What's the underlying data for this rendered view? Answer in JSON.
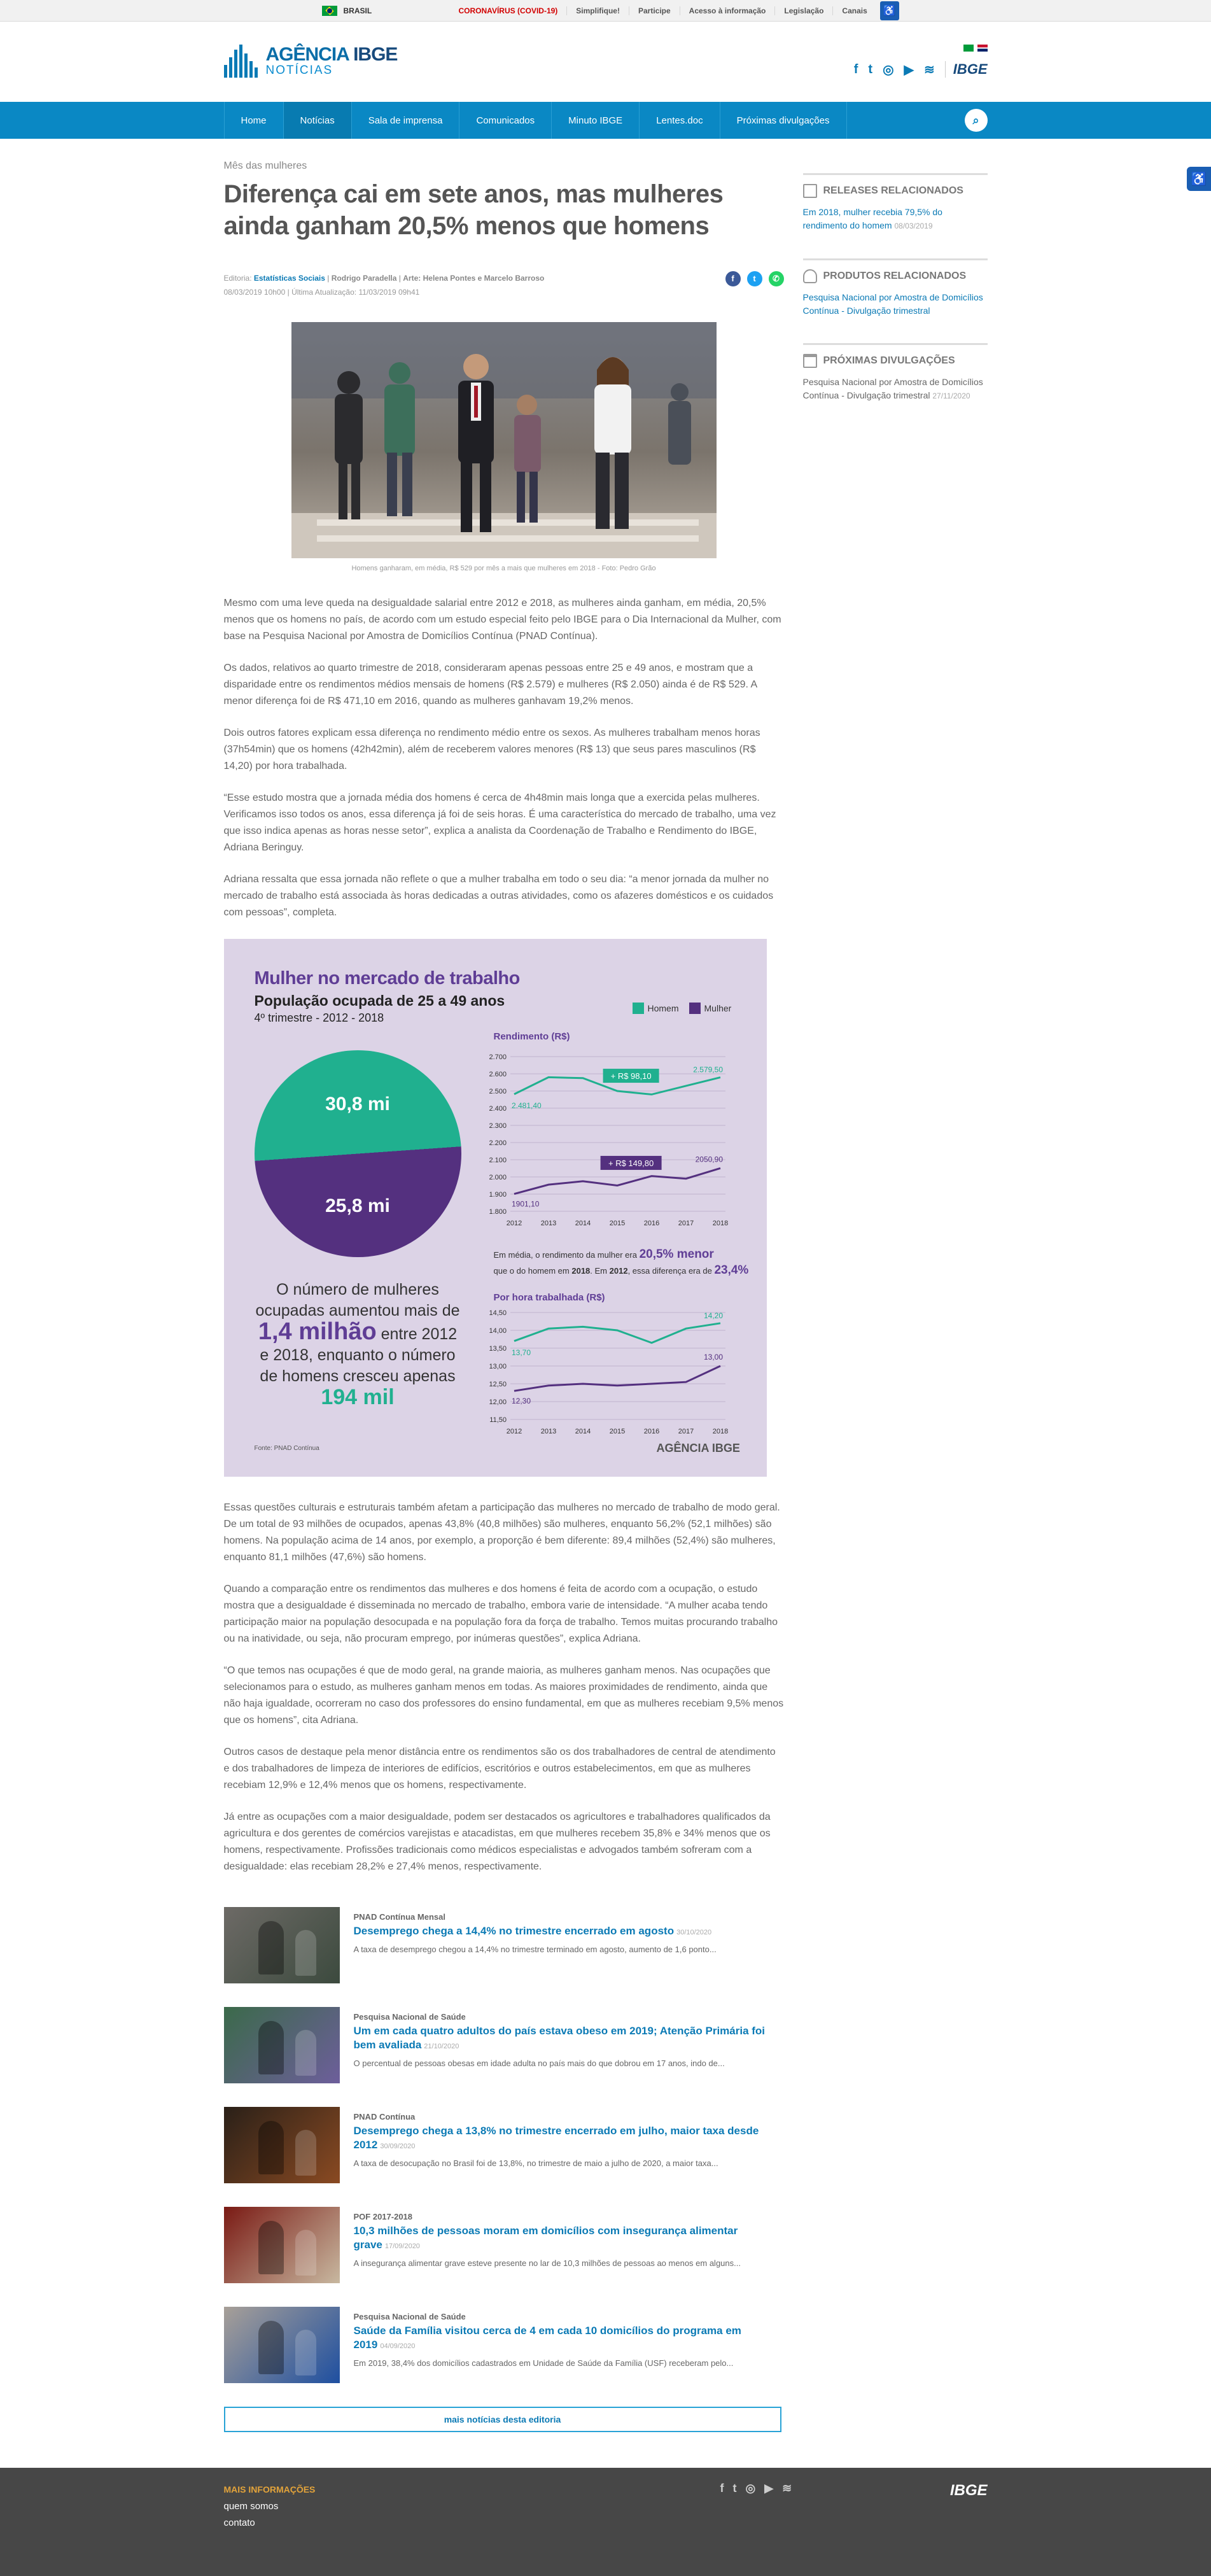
{
  "govbar": {
    "brasil": "BRASIL",
    "links": [
      "CORONAVÍRUS (COVID-19)",
      "Simplifique!",
      "Participe",
      "Acesso à informação",
      "Legislação",
      "Canais"
    ]
  },
  "header": {
    "logo_line1": "AGÊNCIA",
    "logo_line1b": "IBGE",
    "logo_line2": "NOTÍCIAS",
    "ibge": "IBGE"
  },
  "nav": {
    "items": [
      "Home",
      "Notícias",
      "Sala de imprensa",
      "Comunicados",
      "Minuto IBGE",
      "Lentes.doc",
      "Próximas divulgações"
    ],
    "active": "Notícias"
  },
  "article": {
    "kicker": "Mês das mulheres",
    "title": "Diferença cai em sete anos, mas mulheres ainda ganham 20,5% menos que homens",
    "editoria_label": "Editoria:",
    "editoria": "Estatísticas Sociais",
    "author": "Rodrigo Paradella",
    "art": "Arte: Helena Pontes e Marcelo Barroso",
    "date": "08/03/2019 10h00",
    "updated": "Última Atualização: 11/03/2019 09h41",
    "caption": "Homens ganharam, em média, R$ 529 por mês a mais que mulheres em 2018 - Foto: Pedro Grão",
    "paragraphs_a": [
      "Mesmo com uma leve queda na desigualdade salarial entre 2012 e 2018, as mulheres ainda ganham, em média, 20,5% menos que os homens no país, de acordo com um estudo especial feito pelo IBGE para o Dia Internacional da Mulher, com base na Pesquisa Nacional por Amostra de Domicílios Contínua (PNAD Contínua).",
      "Os dados, relativos ao quarto trimestre de 2018, consideraram apenas pessoas entre 25 e 49 anos, e mostram que a disparidade entre os rendimentos médios mensais de homens (R$ 2.579) e mulheres (R$ 2.050) ainda é de R$ 529. A menor diferença foi de R$ 471,10 em 2016, quando as mulheres ganhavam 19,2% menos.",
      "Dois outros fatores explicam essa diferença no rendimento médio entre os sexos. As mulheres trabalham menos horas (37h54min) que os homens (42h42min), além de receberem valores menores (R$ 13) que seus pares masculinos (R$ 14,20) por hora trabalhada.",
      "“Esse estudo mostra que a jornada média dos homens é cerca de 4h48min mais longa que a exercida pelas mulheres. Verificamos isso todos os anos, essa diferença já foi de seis horas. É uma característica do mercado de trabalho, uma vez que isso indica apenas as horas nesse setor”, explica a analista da Coordenação de Trabalho e Rendimento do IBGE, Adriana Beringuy.",
      "Adriana ressalta que essa jornada não reflete o que a mulher trabalha em todo o seu dia: “a menor jornada da mulher no mercado de trabalho está associada às horas dedicadas a outras atividades, como os afazeres domésticos e os cuidados com pessoas”, completa."
    ],
    "paragraphs_b": [
      "Essas questões culturais e estruturais também afetam a participação das mulheres no mercado de trabalho de modo geral. De um total de 93 milhões de ocupados, apenas 43,8% (40,8 milhões) são mulheres, enquanto 56,2% (52,1 milhões) são homens. Na população acima de 14 anos, por exemplo, a proporção é bem diferente: 89,4 milhões (52,4%) são mulheres, enquanto 81,1 milhões (47,6%) são homens.",
      "Quando a comparação entre os rendimentos das mulheres e dos homens é feita de acordo com a ocupação, o estudo mostra que a desigualdade é disseminada no mercado de trabalho, embora varie de intensidade. “A mulher acaba tendo participação maior na população desocupada e na população fora da força de trabalho. Temos muitas procurando trabalho ou na inatividade, ou seja, não procuram emprego, por inúmeras questões”, explica Adriana.",
      "“O que temos nas ocupações é que de modo geral, na grande maioria, as mulheres ganham menos. Nas ocupações que selecionamos para o estudo, as mulheres ganham menos em todas. As maiores proximidades de rendimento, ainda que não haja igualdade, ocorreram no caso dos professores do ensino fundamental, em que as mulheres recebiam 9,5% menos que os homens”, cita Adriana.",
      "Outros casos de destaque pela menor distância entre os rendimentos são os dos trabalhadores de central de atendimento e dos trabalhadores de limpeza de interiores de edifícios, escritórios e outros estabelecimentos, em que as mulheres recebiam 12,9% e 12,4% menos que os homens, respectivamente.",
      "Já entre as ocupações com a maior desigualdade, podem ser destacados os agricultores e trabalhadores qualificados da agricultura e dos gerentes de comércios varejistas e atacadistas, em que mulheres recebem 35,8% e 34% menos que os homens, respectivamente. Profissões tradicionais como médicos especialistas e advogados também sofreram com a desigualdade: elas recebiam 28,2% e 27,4% menos, respectivamente."
    ]
  },
  "infographic": {
    "title": "Mulher no mercado de trabalho",
    "subtitle": "População ocupada de 25 a 49 anos",
    "period": "4º trimestre - 2012 - 2018",
    "legend_men": "Homem",
    "legend_women": "Mulher",
    "pie_men": "30,8 mi",
    "pie_women": "25,8 mi",
    "text_1": "O número de mulheres ocupadas aumentou mais de",
    "text_big1": "1,4 milhão",
    "text_2": "entre 2012 e 2018, enquanto o número de homens cresceu apenas",
    "text_big2": "194 mil",
    "source": "Fonte: PNAD Contínua",
    "logo": "AGÊNCIA IBGE",
    "income_title": "Rendimento (R$)",
    "hour_title": "Por hora trabalhada (R$)",
    "note_1": "Em média, o rendimento da mulher era",
    "note_pct1": "20,5% menor",
    "note_2": "que o do homem em",
    "note_year1": "2018",
    "note_3": ". Em",
    "note_year2": "2012",
    "note_4": ", essa diferença era de",
    "note_pct2": "23,4%",
    "colors": {
      "men": "#20b08f",
      "women": "#54307f",
      "bg": "#dcd3e6"
    }
  },
  "chart_data": [
    {
      "type": "pie",
      "title": "População ocupada de 25 a 49 anos",
      "categories": [
        "Homem",
        "Mulher"
      ],
      "values": [
        30.8,
        25.8
      ],
      "labels": [
        "30,8 mi",
        "25,8 mi"
      ]
    },
    {
      "type": "line",
      "title": "Rendimento (R$)",
      "x": [
        2012,
        2013,
        2014,
        2015,
        2016,
        2017,
        2018
      ],
      "yticks": [
        "1.800",
        "1.900",
        "2.000",
        "2.100",
        "2.200",
        "2.300",
        "2.400",
        "2.500",
        "2.600",
        "2.700"
      ],
      "ylim": [
        1800,
        2700
      ],
      "series": [
        {
          "name": "Homem",
          "values": [
            2481.4,
            2580,
            2575,
            2500,
            2480,
            2530,
            2579.5
          ]
        },
        {
          "name": "Mulher",
          "values": [
            1901.1,
            1955,
            1975,
            1950,
            2005,
            1990,
            2050.9
          ]
        }
      ],
      "point_labels": {
        "first_men": "2.481,40",
        "last_men": "2.579,50",
        "first_women": "1901,10",
        "last_women": "2050,90"
      },
      "annotations": [
        "+ R$ 98,10",
        "+ R$ 149,80"
      ]
    },
    {
      "type": "line",
      "title": "Por hora trabalhada (R$)",
      "x": [
        2012,
        2013,
        2014,
        2015,
        2016,
        2017,
        2018
      ],
      "yticks": [
        "11,50",
        "12,00",
        "12,50",
        "13,00",
        "13,50",
        "14,00",
        "14,50"
      ],
      "ylim": [
        11.5,
        14.5
      ],
      "series": [
        {
          "name": "Homem",
          "values": [
            13.7,
            14.05,
            14.1,
            14.0,
            13.65,
            14.05,
            14.2
          ]
        },
        {
          "name": "Mulher",
          "values": [
            12.3,
            12.45,
            12.5,
            12.45,
            12.5,
            12.55,
            13.0
          ]
        }
      ],
      "point_labels": {
        "first_men": "13,70",
        "last_men": "14,20",
        "first_women": "12,30",
        "last_women": "13,00"
      }
    }
  ],
  "news": [
    {
      "kicker": "PNAD Contínua Mensal",
      "title": "Desemprego chega a 14,4% no trimestre encerrado em agosto",
      "date": "30/10/2020",
      "summary": "A taxa de desemprego chegou a 14,4% no trimestre terminado em agosto, aumento de 1,6 ponto..."
    },
    {
      "kicker": "Pesquisa Nacional de Saúde",
      "title": "Um em cada quatro adultos do país estava obeso em 2019; Atenção Primária foi bem avaliada",
      "date": "21/10/2020",
      "summary": "O percentual de pessoas obesas em idade adulta no país mais do que dobrou em 17 anos, indo de..."
    },
    {
      "kicker": "PNAD Contínua",
      "title": "Desemprego chega a 13,8% no trimestre encerrado em julho, maior taxa desde 2012",
      "date": "30/09/2020",
      "summary": "A taxa de desocupação no Brasil foi de 13,8%, no trimestre de maio a julho de 2020, a maior taxa..."
    },
    {
      "kicker": "POF 2017-2018",
      "title": "10,3 milhões de pessoas moram em domicílios com insegurança alimentar grave",
      "date": "17/09/2020",
      "summary": "A insegurança alimentar grave esteve presente no lar de 10,3 milhões de pessoas ao menos em alguns..."
    },
    {
      "kicker": "Pesquisa Nacional de Saúde",
      "title": "Saúde da Família visitou cerca de 4 em cada 10 domicílios do programa em 2019",
      "date": "04/09/2020",
      "summary": "Em 2019, 38,4% dos domicílios cadastrados em Unidade de Saúde da Família (USF) receberam pelo..."
    }
  ],
  "more_news": "mais notícias desta editoria",
  "sidebar": {
    "releases_title": "RELEASES RELACIONADOS",
    "releases_link": "Em 2018, mulher recebia 79,5% do rendimento do homem",
    "releases_date": "08/03/2019",
    "products_title": "PRODUTOS RELACIONADOS",
    "products_link": "Pesquisa Nacional por Amostra de Domicílios Contínua - Divulgação trimestral",
    "next_title": "PRÓXIMAS DIVULGAÇÕES",
    "next_link": "Pesquisa Nacional por Amostra de Domicílios Contínua - Divulgação trimestral",
    "next_date": "27/11/2020"
  },
  "footer": {
    "heading": "MAIS INFORMAÇÕES",
    "links": [
      "quem somos",
      "contato"
    ],
    "logo": "IBGE"
  }
}
